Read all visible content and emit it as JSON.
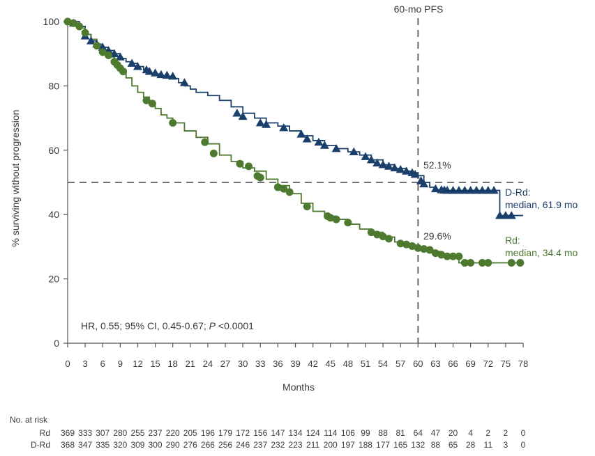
{
  "chart_data": {
    "type": "line",
    "subtype": "kaplan-meier",
    "title": "",
    "xlabel": "Months",
    "ylabel": "% surviving without progression",
    "xlim": [
      0,
      78
    ],
    "ylim": [
      0,
      100
    ],
    "x_ticks": [
      0,
      3,
      6,
      9,
      12,
      15,
      18,
      21,
      24,
      27,
      30,
      33,
      36,
      39,
      42,
      45,
      48,
      51,
      54,
      57,
      60,
      63,
      66,
      69,
      72,
      75,
      78
    ],
    "y_ticks": [
      0,
      20,
      40,
      60,
      80,
      100
    ],
    "grid": false,
    "series": [
      {
        "name": "D-Rd",
        "color": "#1b3f6b",
        "marker": "triangle",
        "x": [
          0,
          2,
          3,
          4,
          5,
          6,
          7,
          8,
          9,
          10,
          11,
          12,
          13,
          14,
          15,
          16,
          17,
          18,
          19,
          20,
          21,
          22,
          24,
          26,
          28,
          30,
          32,
          34,
          36,
          38,
          40,
          42,
          44,
          46,
          48,
          50,
          52,
          54,
          56,
          58,
          59,
          60,
          61,
          62,
          63,
          64,
          66,
          68,
          70,
          72,
          73.5,
          74,
          76,
          78
        ],
        "y": [
          100,
          98.5,
          96,
          94,
          93,
          92,
          91,
          90,
          88.5,
          87.5,
          87,
          86,
          85,
          84,
          83.7,
          83.2,
          83,
          82.3,
          81,
          80,
          79,
          78,
          77,
          75.5,
          73.5,
          71.5,
          70,
          68.5,
          67.5,
          66,
          64.5,
          63,
          61.5,
          60.5,
          59.5,
          58.5,
          57,
          55.5,
          54.3,
          53.5,
          53,
          52.1,
          50,
          48.5,
          47.7,
          47.5,
          47.5,
          47.5,
          47.5,
          47.5,
          47.5,
          39.7,
          39.7,
          39.7
        ],
        "marker_x": [
          1,
          3,
          4,
          5,
          6,
          7,
          8,
          9,
          11,
          12,
          13.5,
          14,
          15,
          16,
          17,
          18,
          20,
          29,
          30,
          33,
          34,
          37,
          40,
          41,
          43,
          44,
          46,
          49,
          51,
          52,
          53,
          54,
          55,
          56,
          57,
          58,
          59,
          59.5,
          60.5,
          61,
          63,
          64,
          64.5,
          65,
          66,
          67,
          68,
          69,
          70,
          71,
          72,
          73,
          74,
          75,
          76
        ],
        "marker_y": [
          99.5,
          95.5,
          94,
          93,
          92,
          91,
          90,
          89,
          87,
          86,
          85,
          84.5,
          84,
          83.5,
          83.3,
          83,
          81,
          71.5,
          70.5,
          68.5,
          68,
          67,
          65,
          63.5,
          62.5,
          61.5,
          60.5,
          59.5,
          58,
          57,
          56,
          55.5,
          55,
          54.5,
          54,
          53.5,
          53,
          52.5,
          50.5,
          49.5,
          48,
          47.7,
          47.6,
          47.5,
          47.5,
          47.5,
          47.5,
          47.5,
          47.5,
          47.5,
          47.5,
          47.5,
          39.7,
          39.7,
          39.7
        ],
        "at_risk": [
          "368",
          "347",
          "335",
          "320",
          "309",
          "300",
          "290",
          "276",
          "266",
          "256",
          "246",
          "237",
          "232",
          "223",
          "211",
          "200",
          "197",
          "188",
          "177",
          "165",
          "132",
          "88",
          "65",
          "28",
          "11",
          "3",
          "0"
        ]
      },
      {
        "name": "Rd",
        "color": "#4d7a2f",
        "marker": "circle",
        "x": [
          0,
          1,
          2,
          3,
          4,
          5,
          6,
          7,
          8,
          9,
          10,
          11,
          12,
          13,
          14,
          15,
          16,
          17,
          18,
          20,
          22,
          24,
          26,
          28,
          30,
          32,
          34,
          36,
          38,
          40,
          42,
          44,
          46,
          48,
          50,
          52,
          54,
          56,
          58,
          60,
          62,
          64,
          66,
          67,
          68,
          70,
          72,
          74,
          76,
          78
        ],
        "y": [
          100,
          99.5,
          98,
          96,
          94.5,
          92.5,
          90.5,
          89,
          87,
          85,
          82.5,
          80,
          78,
          76.5,
          74.5,
          73,
          71,
          70,
          68.5,
          66,
          64,
          62,
          58.5,
          56.5,
          54.5,
          53.5,
          51,
          49,
          46.5,
          43.5,
          41,
          39.5,
          38.5,
          37,
          35.5,
          34.5,
          33,
          31.5,
          30.5,
          29.6,
          28.5,
          27.5,
          27,
          25,
          25,
          25,
          25,
          25,
          25,
          25
        ],
        "marker_x": [
          0,
          1,
          2,
          3,
          5,
          6,
          7,
          8,
          8.5,
          9,
          9.5,
          13.5,
          14.5,
          18,
          23.5,
          25,
          29.5,
          31,
          32.5,
          33,
          36,
          37,
          38,
          41,
          44.5,
          45,
          46,
          48,
          52,
          53,
          54,
          55,
          57,
          58,
          59,
          60,
          61,
          62,
          63,
          64,
          65,
          66,
          67,
          68,
          69,
          71,
          72,
          76,
          77.5
        ],
        "marker_y": [
          100,
          99.5,
          98.5,
          96.5,
          92.5,
          90.5,
          89.5,
          87.5,
          86.5,
          85.5,
          84.5,
          75.5,
          74.5,
          68.5,
          62.5,
          59,
          55.8,
          55,
          52,
          51.5,
          48.5,
          48,
          47,
          42.5,
          39.5,
          39,
          38.5,
          37.5,
          34.5,
          33.8,
          33.2,
          32.5,
          31,
          30.7,
          30.2,
          29.6,
          29.3,
          29,
          28,
          27.5,
          27,
          27,
          27,
          25,
          25,
          25,
          25,
          25,
          25
        ],
        "at_risk": [
          "369",
          "333",
          "307",
          "280",
          "255",
          "237",
          "220",
          "205",
          "196",
          "179",
          "172",
          "156",
          "147",
          "134",
          "124",
          "114",
          "106",
          "99",
          "88",
          "81",
          "64",
          "47",
          "20",
          "4",
          "2",
          "2",
          "0"
        ]
      }
    ],
    "reference_lines": {
      "vertical_x": 60,
      "horizontal_y": 50,
      "style": "dashed"
    },
    "annotations": {
      "pfs_label": "60-mo PFS",
      "drd_value": "52.1%",
      "rd_value": "29.6%",
      "drd_median_line1": "D-Rd:",
      "drd_median_line2": "median, 61.9 mo",
      "rd_median_line1": "Rd:",
      "rd_median_line2": "median, 34.4 mo",
      "hr_text_main": "HR, 0.55; 95% CI, 0.45-0.67; ",
      "hr_text_p_italic": "P",
      "hr_text_tail": " <0.0001"
    },
    "risk_table": {
      "title": "No. at risk",
      "rows": [
        "Rd",
        "D-Rd"
      ]
    }
  }
}
